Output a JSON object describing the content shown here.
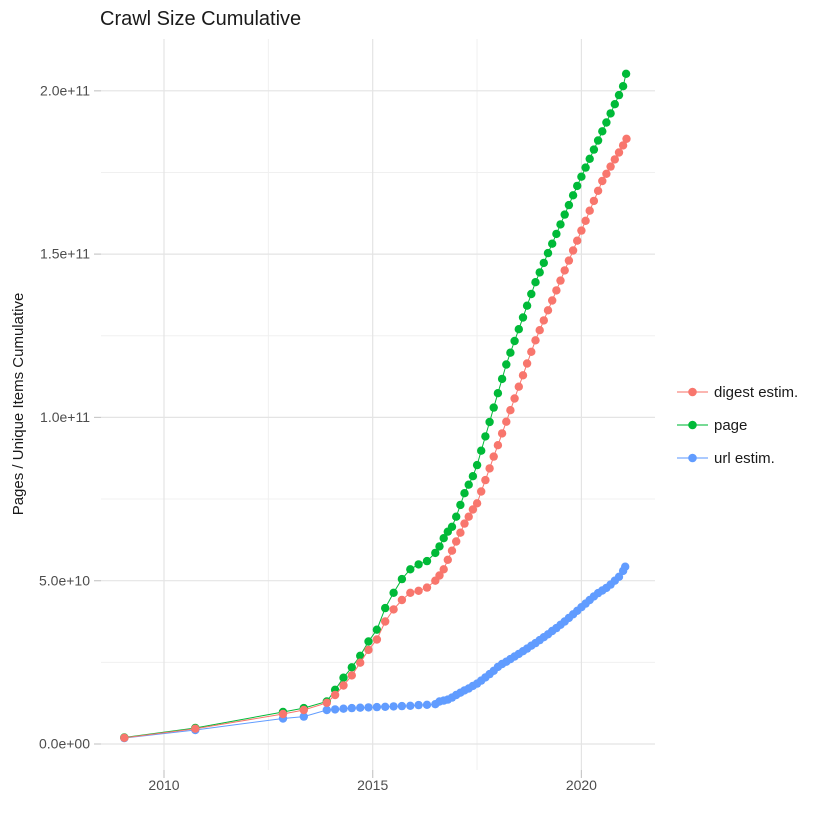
{
  "title": "Crawl Size Cumulative",
  "y_axis": {
    "label": "Pages / Unique Items Cumulative",
    "tick_labels": [
      "0.0e+00",
      "5.0e+10",
      "1.0e+11",
      "1.5e+11",
      "2.0e+11"
    ]
  },
  "x_axis": {
    "tick_labels": [
      "2010",
      "2015",
      "2020"
    ]
  },
  "legend": {
    "items": [
      {
        "label": "digest estim.",
        "color": "#F8766D"
      },
      {
        "label": "page",
        "color": "#00BA38"
      },
      {
        "label": "url estim.",
        "color": "#619CFF"
      }
    ]
  },
  "colors": {
    "background": "#FFFFFF",
    "grid_major": "#E4E4E4",
    "grid_minor": "#F0F0F0",
    "tick": "#C9C9C9",
    "tick_label": "#4D4D4D",
    "title": "#1A1A1A"
  },
  "chart_data": {
    "type": "scatter",
    "title": "Crawl Size Cumulative",
    "xlabel": "",
    "ylabel": "Pages / Unique Items Cumulative",
    "x_unit": "year",
    "y_unit": "items, billions (1e9)",
    "xlim": [
      2008.45,
      2021.78
    ],
    "ylim_e9": [
      -8.0,
      216.0
    ],
    "x_ticks": [
      2010,
      2015,
      2020
    ],
    "x_minor_gridlines": [
      2012.5,
      2017.5
    ],
    "y_ticks_e9": [
      0,
      50,
      100,
      150,
      200
    ],
    "y_minor_gridlines_e9": [
      25,
      75,
      125,
      175
    ],
    "y_tick_labels": [
      "0.0e+00",
      "5.0e+10",
      "1.0e+11",
      "1.5e+11",
      "2.0e+11"
    ],
    "grid": true,
    "legend_position": "right",
    "series": [
      {
        "name": "digest estim.",
        "color": "#F8766D",
        "points_year_value_e9": [
          [
            2009.05,
            1.9
          ],
          [
            2010.75,
            4.7
          ],
          [
            2012.85,
            9.2
          ],
          [
            2013.35,
            10.4
          ],
          [
            2013.9,
            12.6
          ],
          [
            2014.1,
            15.0
          ],
          [
            2014.3,
            17.9
          ],
          [
            2014.5,
            21.0
          ],
          [
            2014.7,
            24.9
          ],
          [
            2014.9,
            28.8
          ],
          [
            2015.1,
            32.0
          ],
          [
            2015.3,
            37.5
          ],
          [
            2015.5,
            41.2
          ],
          [
            2015.7,
            44.1
          ],
          [
            2015.9,
            46.3
          ],
          [
            2016.1,
            46.9
          ],
          [
            2016.3,
            47.9
          ],
          [
            2016.5,
            50.0
          ],
          [
            2016.6,
            51.6
          ],
          [
            2016.7,
            53.5
          ],
          [
            2016.8,
            56.4
          ],
          [
            2016.9,
            59.2
          ],
          [
            2017.0,
            62.0
          ],
          [
            2017.1,
            64.7
          ],
          [
            2017.2,
            67.5
          ],
          [
            2017.3,
            69.6
          ],
          [
            2017.4,
            71.8
          ],
          [
            2017.5,
            73.7
          ],
          [
            2017.6,
            77.3
          ],
          [
            2017.7,
            80.8
          ],
          [
            2017.8,
            84.4
          ],
          [
            2017.9,
            88.0
          ],
          [
            2018.0,
            91.5
          ],
          [
            2018.1,
            95.1
          ],
          [
            2018.2,
            98.7
          ],
          [
            2018.3,
            102.2
          ],
          [
            2018.4,
            105.8
          ],
          [
            2018.5,
            109.4
          ],
          [
            2018.6,
            112.9
          ],
          [
            2018.7,
            116.5
          ],
          [
            2018.8,
            120.1
          ],
          [
            2018.9,
            123.6
          ],
          [
            2019.0,
            126.7
          ],
          [
            2019.1,
            129.7
          ],
          [
            2019.2,
            132.8
          ],
          [
            2019.3,
            135.8
          ],
          [
            2019.4,
            138.9
          ],
          [
            2019.5,
            141.9
          ],
          [
            2019.6,
            145.0
          ],
          [
            2019.7,
            148.0
          ],
          [
            2019.8,
            151.1
          ],
          [
            2019.9,
            154.1
          ],
          [
            2020.0,
            157.2
          ],
          [
            2020.1,
            160.2
          ],
          [
            2020.2,
            163.3
          ],
          [
            2020.3,
            166.3
          ],
          [
            2020.4,
            169.4
          ],
          [
            2020.5,
            172.4
          ],
          [
            2020.6,
            174.6
          ],
          [
            2020.7,
            176.8
          ],
          [
            2020.8,
            179.0
          ],
          [
            2020.9,
            181.1
          ],
          [
            2021.0,
            183.3
          ],
          [
            2021.08,
            185.3
          ]
        ]
      },
      {
        "name": "page",
        "color": "#00BA38",
        "points_year_value_e9": [
          [
            2009.05,
            2.0
          ],
          [
            2010.75,
            4.9
          ],
          [
            2012.85,
            9.8
          ],
          [
            2013.35,
            11.0
          ],
          [
            2013.9,
            13.0
          ],
          [
            2014.1,
            16.6
          ],
          [
            2014.3,
            20.3
          ],
          [
            2014.5,
            23.5
          ],
          [
            2014.7,
            27.0
          ],
          [
            2014.9,
            31.4
          ],
          [
            2015.1,
            35.0
          ],
          [
            2015.3,
            41.6
          ],
          [
            2015.5,
            46.3
          ],
          [
            2015.7,
            50.5
          ],
          [
            2015.9,
            53.5
          ],
          [
            2016.1,
            55.0
          ],
          [
            2016.3,
            56.0
          ],
          [
            2016.5,
            58.5
          ],
          [
            2016.6,
            60.5
          ],
          [
            2016.7,
            63.0
          ],
          [
            2016.8,
            65.0
          ],
          [
            2016.9,
            66.5
          ],
          [
            2017.0,
            69.6
          ],
          [
            2017.1,
            73.2
          ],
          [
            2017.2,
            76.8
          ],
          [
            2017.3,
            79.4
          ],
          [
            2017.4,
            82.0
          ],
          [
            2017.5,
            85.4
          ],
          [
            2017.6,
            89.8
          ],
          [
            2017.7,
            94.2
          ],
          [
            2017.8,
            98.6
          ],
          [
            2017.9,
            103.0
          ],
          [
            2018.0,
            107.4
          ],
          [
            2018.1,
            111.8
          ],
          [
            2018.2,
            116.2
          ],
          [
            2018.3,
            119.8
          ],
          [
            2018.4,
            123.4
          ],
          [
            2018.5,
            127.0
          ],
          [
            2018.6,
            130.6
          ],
          [
            2018.7,
            134.2
          ],
          [
            2018.8,
            137.8
          ],
          [
            2018.9,
            141.4
          ],
          [
            2019.0,
            144.4
          ],
          [
            2019.1,
            147.3
          ],
          [
            2019.2,
            150.3
          ],
          [
            2019.3,
            153.2
          ],
          [
            2019.4,
            156.2
          ],
          [
            2019.5,
            159.1
          ],
          [
            2019.6,
            162.1
          ],
          [
            2019.7,
            165.0
          ],
          [
            2019.8,
            168.0
          ],
          [
            2019.9,
            170.9
          ],
          [
            2020.0,
            173.7
          ],
          [
            2020.1,
            176.5
          ],
          [
            2020.2,
            179.2
          ],
          [
            2020.3,
            182.0
          ],
          [
            2020.4,
            184.8
          ],
          [
            2020.5,
            187.6
          ],
          [
            2020.6,
            190.3
          ],
          [
            2020.7,
            193.1
          ],
          [
            2020.8,
            195.9
          ],
          [
            2020.9,
            198.7
          ],
          [
            2021.0,
            201.4
          ],
          [
            2021.07,
            205.2
          ]
        ]
      },
      {
        "name": "url estim.",
        "color": "#619CFF",
        "points_year_value_e9": [
          [
            2009.05,
            1.8
          ],
          [
            2010.75,
            4.3
          ],
          [
            2012.85,
            7.8
          ],
          [
            2013.35,
            8.4
          ],
          [
            2013.9,
            10.4
          ],
          [
            2014.1,
            10.6
          ],
          [
            2014.3,
            10.8
          ],
          [
            2014.5,
            11.0
          ],
          [
            2014.7,
            11.1
          ],
          [
            2014.9,
            11.2
          ],
          [
            2015.1,
            11.3
          ],
          [
            2015.3,
            11.4
          ],
          [
            2015.5,
            11.5
          ],
          [
            2015.7,
            11.6
          ],
          [
            2015.9,
            11.7
          ],
          [
            2016.1,
            11.9
          ],
          [
            2016.3,
            12.0
          ],
          [
            2016.5,
            12.2
          ],
          [
            2016.6,
            13.0
          ],
          [
            2016.7,
            13.3
          ],
          [
            2016.8,
            13.6
          ],
          [
            2016.9,
            14.2
          ],
          [
            2017.0,
            15.0
          ],
          [
            2017.1,
            15.7
          ],
          [
            2017.2,
            16.4
          ],
          [
            2017.3,
            17.0
          ],
          [
            2017.4,
            17.8
          ],
          [
            2017.5,
            18.5
          ],
          [
            2017.6,
            19.4
          ],
          [
            2017.7,
            20.4
          ],
          [
            2017.8,
            21.4
          ],
          [
            2017.9,
            22.4
          ],
          [
            2018.0,
            23.6
          ],
          [
            2018.1,
            24.5
          ],
          [
            2018.2,
            25.2
          ],
          [
            2018.3,
            26.0
          ],
          [
            2018.4,
            26.8
          ],
          [
            2018.5,
            27.6
          ],
          [
            2018.6,
            28.4
          ],
          [
            2018.7,
            29.2
          ],
          [
            2018.8,
            30.1
          ],
          [
            2018.9,
            30.9
          ],
          [
            2019.0,
            31.8
          ],
          [
            2019.1,
            32.7
          ],
          [
            2019.2,
            33.6
          ],
          [
            2019.3,
            34.6
          ],
          [
            2019.4,
            35.5
          ],
          [
            2019.5,
            36.5
          ],
          [
            2019.6,
            37.5
          ],
          [
            2019.7,
            38.6
          ],
          [
            2019.8,
            39.7
          ],
          [
            2019.9,
            40.8
          ],
          [
            2020.0,
            41.9
          ],
          [
            2020.1,
            43.0
          ],
          [
            2020.2,
            44.1
          ],
          [
            2020.3,
            45.2
          ],
          [
            2020.4,
            46.2
          ],
          [
            2020.5,
            47.0
          ],
          [
            2020.6,
            47.8
          ],
          [
            2020.7,
            48.8
          ],
          [
            2020.8,
            50.0
          ],
          [
            2020.9,
            51.2
          ],
          [
            2021.0,
            53.0
          ],
          [
            2021.05,
            54.3
          ]
        ]
      }
    ]
  }
}
